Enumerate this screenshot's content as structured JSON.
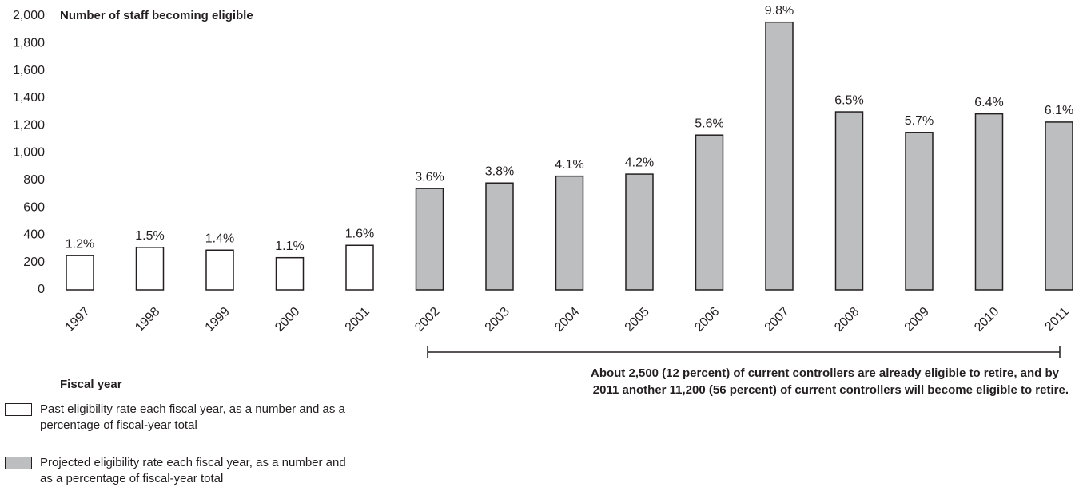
{
  "chart_data": {
    "type": "bar",
    "y_label": "Number of staff becoming eligible",
    "x_label": "Fiscal year",
    "categories": [
      "1997",
      "1998",
      "1999",
      "2000",
      "2001",
      "2002",
      "2003",
      "2004",
      "2005",
      "2006",
      "2007",
      "2008",
      "2009",
      "2010",
      "2011"
    ],
    "series": [
      {
        "name": "Past eligibility rate each fiscal year, as a number and as a percentage of fiscal-year total",
        "color": "#ffffff",
        "values": [
          250,
          310,
          290,
          235,
          325,
          null,
          null,
          null,
          null,
          null,
          null,
          null,
          null,
          null,
          null
        ]
      },
      {
        "name": "Projected eligibility rate each fiscal year, as a number and as a percentage of fiscal-year total",
        "color": "#bcbec0",
        "values": [
          null,
          null,
          null,
          null,
          null,
          740,
          780,
          830,
          845,
          1130,
          1955,
          1300,
          1150,
          1285,
          1225
        ]
      }
    ],
    "shares": [
      "1.2%",
      "1.5%",
      "1.4%",
      "1.1%",
      "1.6%",
      "3.6%",
      "3.8%",
      "4.1%",
      "4.2%",
      "5.6%",
      "9.8%",
      "6.5%",
      "5.7%",
      "6.4%",
      "6.1%"
    ],
    "annotation": [
      "About 2,500 (12 percent) of current controllers are already eligible to retire, and by",
      "2011 another 11,200 (56 percent) of current controllers will become eligible to retire."
    ],
    "ylim": [
      0,
      2000
    ],
    "yticks": [
      0,
      200,
      400,
      600,
      800,
      {
        "value": 1000,
        "label": "1,000"
      },
      {
        "value": 1200,
        "label": "1,200"
      },
      {
        "value": 1400,
        "label": "1,400"
      },
      {
        "value": 1600,
        "label": "1,600"
      },
      {
        "value": 1800,
        "label": "1,800"
      },
      {
        "value": 2000,
        "label": "2,000"
      }
    ],
    "grid": false
  }
}
